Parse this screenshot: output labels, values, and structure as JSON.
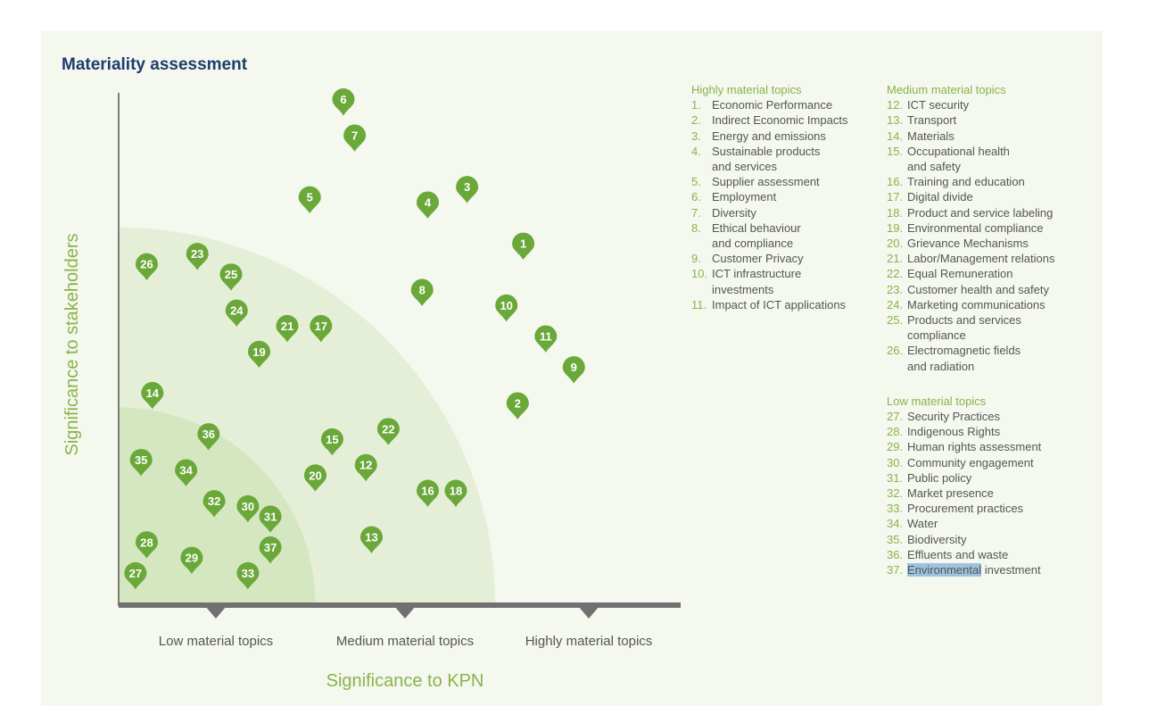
{
  "title": "Materiality assessment",
  "chart_data": {
    "type": "scatter",
    "title": "Materiality assessment",
    "xlabel": "Significance to KPN",
    "ylabel": "Significance to stakeholders",
    "xlim": [
      0,
      100
    ],
    "ylim": [
      0,
      100
    ],
    "x_tick_labels": [
      "Low material topics",
      "Medium material topics",
      "Highly material topics"
    ],
    "points": [
      {
        "label": "1",
        "x": 72,
        "y": 70
      },
      {
        "label": "2",
        "x": 71,
        "y": 39
      },
      {
        "label": "3",
        "x": 62,
        "y": 81
      },
      {
        "label": "4",
        "x": 55,
        "y": 78
      },
      {
        "label": "5",
        "x": 34,
        "y": 79
      },
      {
        "label": "6",
        "x": 40,
        "y": 98
      },
      {
        "label": "7",
        "x": 42,
        "y": 91
      },
      {
        "label": "8",
        "x": 54,
        "y": 61
      },
      {
        "label": "9",
        "x": 81,
        "y": 46
      },
      {
        "label": "10",
        "x": 69,
        "y": 58
      },
      {
        "label": "11",
        "x": 76,
        "y": 52
      },
      {
        "label": "12",
        "x": 44,
        "y": 27
      },
      {
        "label": "13",
        "x": 45,
        "y": 13
      },
      {
        "label": "14",
        "x": 6,
        "y": 41
      },
      {
        "label": "15",
        "x": 38,
        "y": 32
      },
      {
        "label": "16",
        "x": 55,
        "y": 22
      },
      {
        "label": "17",
        "x": 36,
        "y": 54
      },
      {
        "label": "18",
        "x": 60,
        "y": 22
      },
      {
        "label": "19",
        "x": 25,
        "y": 49
      },
      {
        "label": "20",
        "x": 35,
        "y": 25
      },
      {
        "label": "21",
        "x": 30,
        "y": 54
      },
      {
        "label": "22",
        "x": 48,
        "y": 34
      },
      {
        "label": "23",
        "x": 14,
        "y": 68
      },
      {
        "label": "24",
        "x": 21,
        "y": 57
      },
      {
        "label": "25",
        "x": 20,
        "y": 64
      },
      {
        "label": "26",
        "x": 5,
        "y": 66
      },
      {
        "label": "27",
        "x": 3,
        "y": 6
      },
      {
        "label": "28",
        "x": 5,
        "y": 12
      },
      {
        "label": "29",
        "x": 13,
        "y": 9
      },
      {
        "label": "30",
        "x": 23,
        "y": 19
      },
      {
        "label": "31",
        "x": 27,
        "y": 17
      },
      {
        "label": "32",
        "x": 17,
        "y": 20
      },
      {
        "label": "33",
        "x": 23,
        "y": 6
      },
      {
        "label": "34",
        "x": 12,
        "y": 26
      },
      {
        "label": "35",
        "x": 4,
        "y": 28
      },
      {
        "label": "36",
        "x": 16,
        "y": 33
      },
      {
        "label": "37",
        "x": 27,
        "y": 11
      }
    ],
    "regions": [
      {
        "name": "Low material topics",
        "radius": 35
      },
      {
        "name": "Medium material topics",
        "radius": 67
      }
    ]
  },
  "legend": {
    "high": {
      "heading": "Highly material topics",
      "items": [
        {
          "num": "1.",
          "text": "Economic Performance"
        },
        {
          "num": "2.",
          "text": "Indirect Economic Impacts"
        },
        {
          "num": "3.",
          "text": "Energy and emissions"
        },
        {
          "num": "4.",
          "text": "Sustainable products",
          "text2": "and services"
        },
        {
          "num": "5.",
          "text": "Supplier assessment"
        },
        {
          "num": "6.",
          "text": "Employment"
        },
        {
          "num": "7.",
          "text": "Diversity"
        },
        {
          "num": "8.",
          "text": "Ethical behaviour",
          "text2": "and compliance"
        },
        {
          "num": "9.",
          "text": "Customer Privacy"
        },
        {
          "num": "10.",
          "text": "ICT infrastructure",
          "text2": "investments"
        },
        {
          "num": "11.",
          "text": "Impact of ICT applications"
        }
      ]
    },
    "medium": {
      "heading": "Medium material topics",
      "items": [
        {
          "num": "12.",
          "text": "ICT security"
        },
        {
          "num": "13.",
          "text": "Transport"
        },
        {
          "num": "14.",
          "text": "Materials"
        },
        {
          "num": "15.",
          "text": "Occupational health",
          "text2": "and safety"
        },
        {
          "num": "16.",
          "text": "Training and education"
        },
        {
          "num": "17.",
          "text": "Digital divide"
        },
        {
          "num": "18.",
          "text": "Product and service labeling"
        },
        {
          "num": "19.",
          "text": "Environmental compliance"
        },
        {
          "num": "20.",
          "text": "Grievance Mechanisms"
        },
        {
          "num": "21.",
          "text": "Labor/Management relations"
        },
        {
          "num": "22.",
          "text": "Equal Remuneration"
        },
        {
          "num": "23.",
          "text": "Customer health and safety"
        },
        {
          "num": "24.",
          "text": "Marketing communications"
        },
        {
          "num": "25.",
          "text": "Products and services",
          "text2": "compliance"
        },
        {
          "num": "26.",
          "text": "Electromagnetic fields",
          "text2": "and radiation"
        }
      ]
    },
    "low": {
      "heading": "Low material topics",
      "items": [
        {
          "num": "27.",
          "text": "Security Practices"
        },
        {
          "num": "28.",
          "text": "Indigenous Rights"
        },
        {
          "num": "29.",
          "text": "Human rights assessment"
        },
        {
          "num": "30.",
          "text": "Community engagement"
        },
        {
          "num": "31.",
          "text": "Public policy"
        },
        {
          "num": "32.",
          "text": "Market presence"
        },
        {
          "num": "33.",
          "text": "Procurement practices"
        },
        {
          "num": "34.",
          "text": "Water"
        },
        {
          "num": "35.",
          "text": "Biodiversity"
        },
        {
          "num": "36.",
          "text": "Effluents and waste"
        },
        {
          "num": "37.",
          "text": "Environmental",
          "text_rest": " investment"
        }
      ]
    }
  },
  "colors": {
    "marker": "#6aa83a",
    "marker_text": "#ffffff",
    "inner_region": "#d5e7c1",
    "outer_region": "#e5efd8",
    "panel": "#f4f8ef",
    "axis": "#707070",
    "axis_label": "#8ab34a",
    "tick_label": "#555555",
    "title": "#1f3c6e"
  }
}
